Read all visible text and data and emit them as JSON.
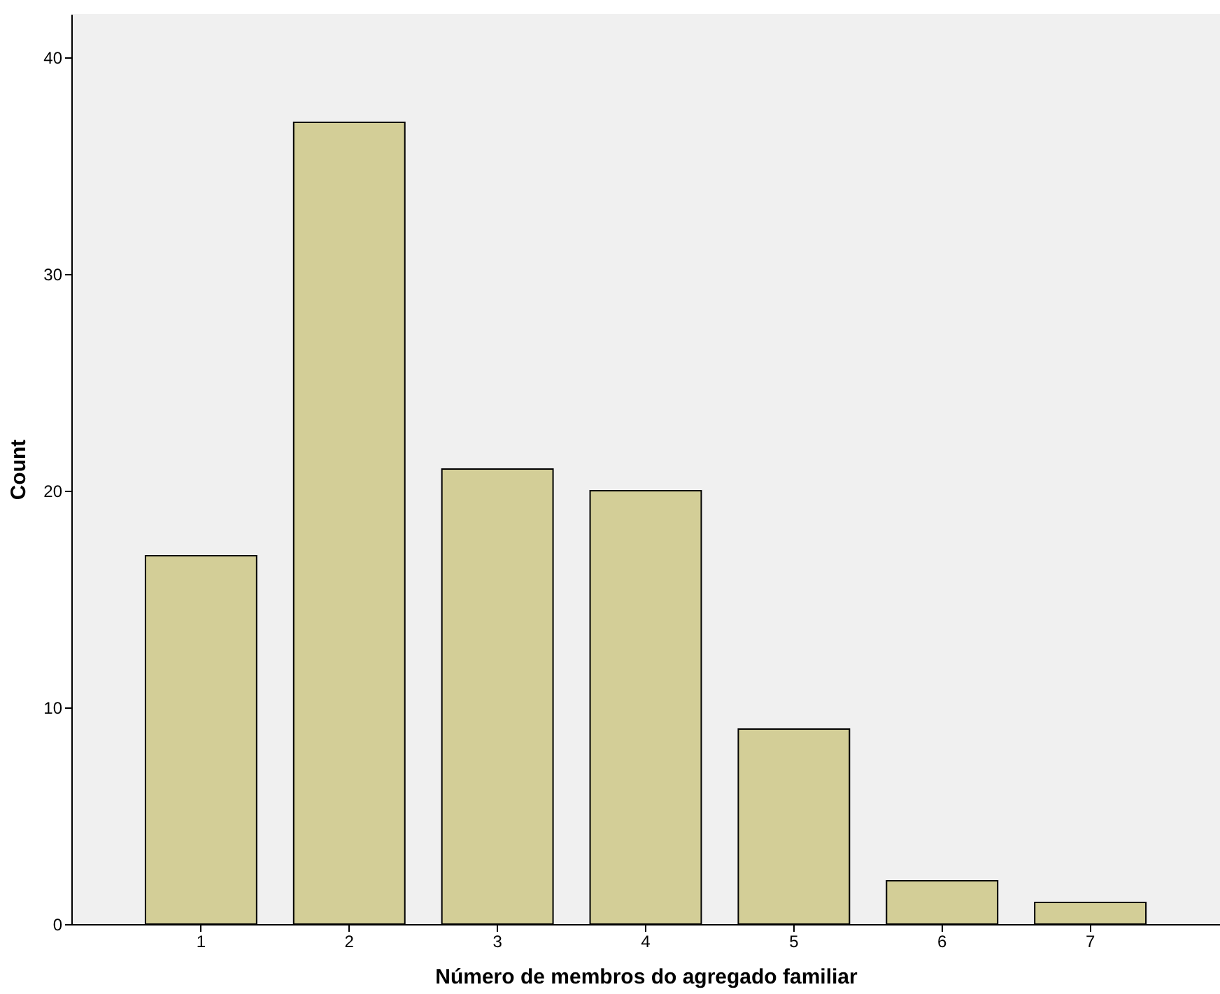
{
  "chart_data": {
    "type": "bar",
    "xlabel": "Número de membros do agregado familiar",
    "ylabel": "Count",
    "categories": [
      "1",
      "2",
      "3",
      "4",
      "5",
      "6",
      "7"
    ],
    "values": [
      17,
      37,
      21,
      20,
      9,
      2,
      1
    ],
    "color": "#d3ce97",
    "ylim": [
      0,
      42
    ],
    "yticks": [
      0,
      10,
      20,
      30,
      40
    ],
    "grid": false
  }
}
